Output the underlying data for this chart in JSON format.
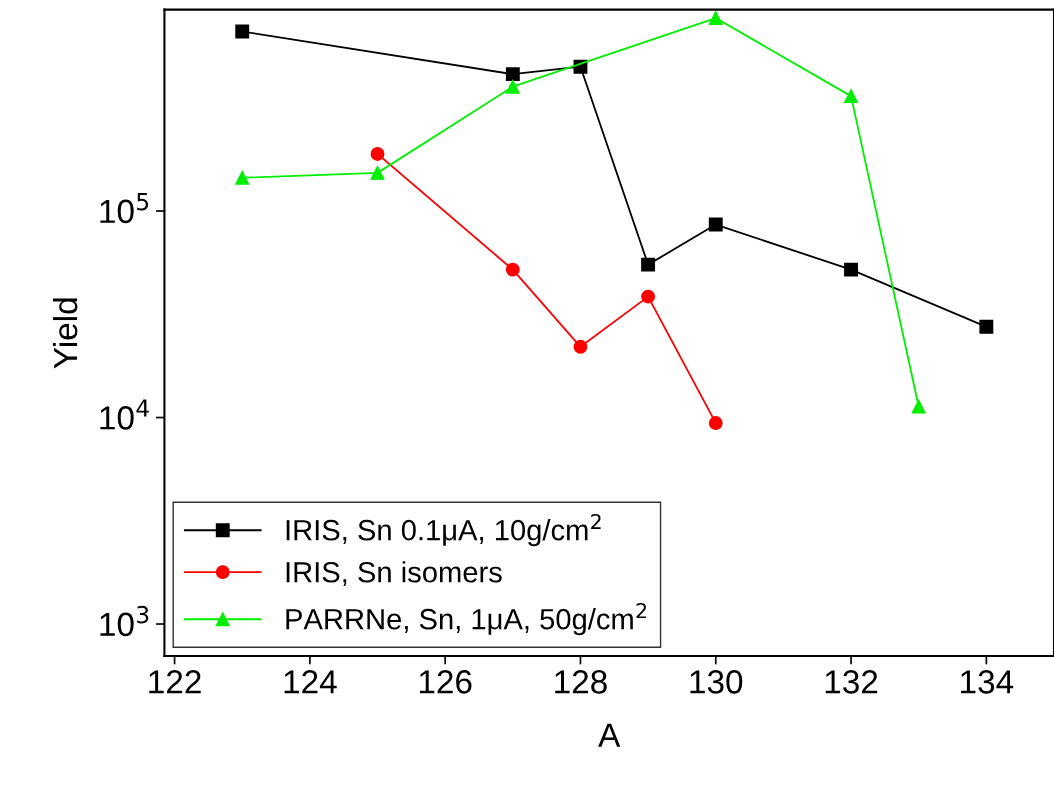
{
  "chart_data": {
    "type": "line",
    "xlabel": "A",
    "ylabel": "Yield",
    "log": "y",
    "xlim": [
      121.85,
      135
    ],
    "xticks": [
      122,
      124,
      126,
      128,
      130,
      132,
      134
    ],
    "ylim": [
      700,
      945000
    ],
    "yticks": [
      {
        "value": 1000,
        "label": "10$^{3}$"
      },
      {
        "value": 10000,
        "label": "10$^{4}$"
      },
      {
        "value": 100000,
        "label": "10$^{5}$"
      }
    ],
    "grid": false,
    "legend": "bottom left",
    "series": [
      {
        "name": "IRIS, Sn 0.1μA, 10g/cm$^{2}$",
        "color": "#000000",
        "marker": "square",
        "x": [
          123,
          127,
          128,
          129,
          130,
          132,
          134
        ],
        "values": [
          740000,
          460000,
          500000,
          55000,
          86000,
          52000,
          27500
        ]
      },
      {
        "name": "IRIS, Sn isomers",
        "color": "#ff0000",
        "marker": "circle",
        "x": [
          125,
          127,
          128,
          129,
          130
        ],
        "values": [
          189000,
          52000,
          22000,
          38500,
          9400
        ]
      },
      {
        "name": "PARRNe, Sn, 1μA, 50g/cm$^{2}$",
        "color": "#00ee00",
        "marker": "triangle",
        "x": [
          123,
          125,
          127,
          130,
          132,
          133
        ],
        "values": [
          145000,
          153000,
          400000,
          860000,
          360000,
          11300
        ]
      }
    ]
  }
}
